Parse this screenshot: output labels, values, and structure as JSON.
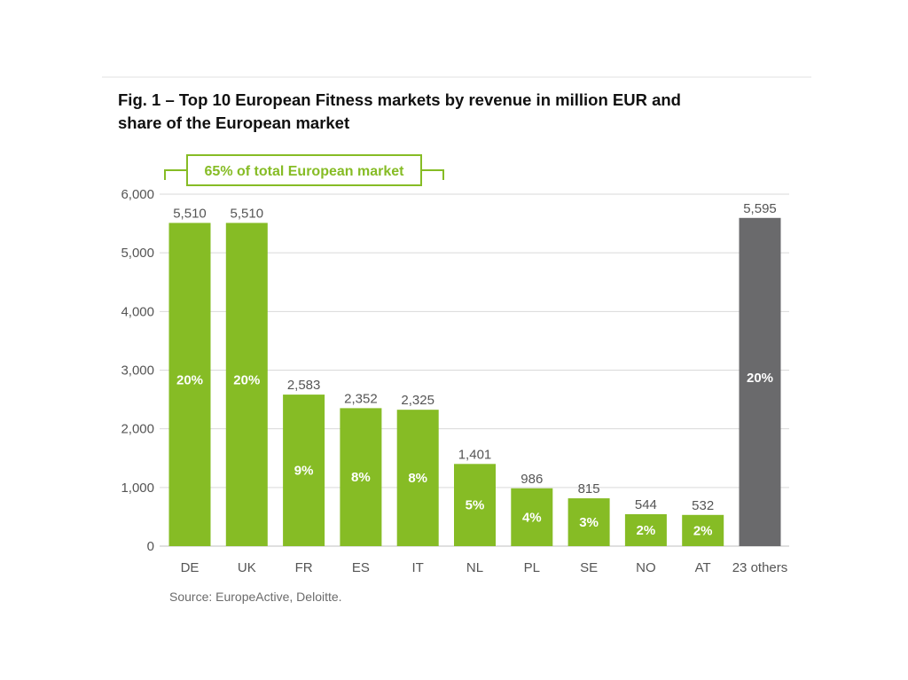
{
  "title": {
    "line1": "Fig. 1 – Top 10 European Fitness markets by revenue in million EUR and",
    "line2": "share of the European market"
  },
  "source": "Source: EuropeActive, Deloitte.",
  "chart_data": {
    "type": "bar",
    "title": "Fig. 1 – Top 10 European Fitness markets by revenue in million EUR and share of the European market",
    "categories": [
      "DE",
      "UK",
      "FR",
      "ES",
      "IT",
      "NL",
      "PL",
      "SE",
      "NO",
      "AT",
      "23 others"
    ],
    "values": [
      5510,
      5510,
      2583,
      2352,
      2325,
      1401,
      986,
      815,
      544,
      532,
      5595
    ],
    "value_labels": [
      "5,510",
      "5,510",
      "2,583",
      "2,352",
      "2,325",
      "1,401",
      "986",
      "815",
      "544",
      "532",
      "5,595"
    ],
    "shares": [
      "20%",
      "20%",
      "9%",
      "8%",
      "8%",
      "5%",
      "4%",
      "3%",
      "2%",
      "2%",
      "20%"
    ],
    "y_ticks": [
      0,
      1000,
      2000,
      3000,
      4000,
      5000,
      6000
    ],
    "y_tick_labels": [
      "0",
      "1,000",
      "2,000",
      "3,000",
      "4,000",
      "5,000",
      "6,000"
    ],
    "ylim": [
      0,
      6000
    ],
    "grid": true,
    "annotation": "65% of total European market",
    "colors": {
      "top10": "#86bc25",
      "others": "#6a6a6c",
      "annotation": "#86bc25",
      "grid": "#d9d9d9"
    }
  }
}
